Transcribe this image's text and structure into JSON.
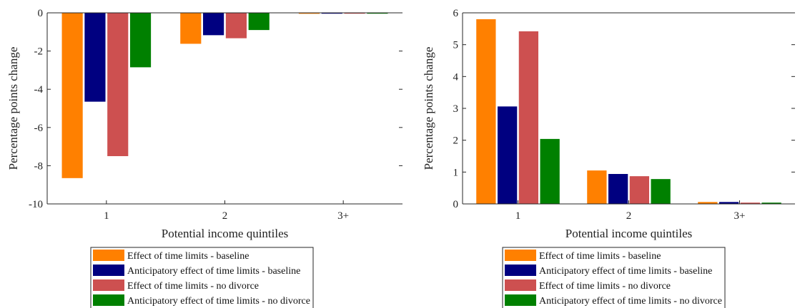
{
  "chart_data": [
    {
      "type": "bar",
      "categories": [
        "1",
        "2",
        "3+"
      ],
      "xlabel": "Potential income quintiles",
      "ylabel": "Percentage points change",
      "ylim": [
        -10,
        0
      ],
      "yticks": [
        0,
        -2,
        -4,
        -6,
        -8,
        -10
      ],
      "yticklabels": [
        "0",
        "-2",
        "-4",
        "-6",
        "-8",
        "-10"
      ],
      "series": [
        {
          "name": "Effect of time limits - baseline",
          "color": "#ff8000",
          "values": [
            -8.65,
            -1.62,
            -0.05
          ]
        },
        {
          "name": "Anticipatory effect of time limits - baseline",
          "color": "#000080",
          "values": [
            -4.65,
            -1.17,
            -0.04
          ]
        },
        {
          "name": "Effect of time limits - no  divorce",
          "color": "#cd5050",
          "values": [
            -7.5,
            -1.33,
            -0.04
          ]
        },
        {
          "name": "Anticipatory effect of time limits - no divorce",
          "color": "#008000",
          "values": [
            -2.85,
            -0.9,
            -0.03
          ]
        }
      ],
      "legend_position": "bottom"
    },
    {
      "type": "bar",
      "categories": [
        "1",
        "2",
        "3+"
      ],
      "xlabel": "Potential income quintiles",
      "ylabel": "Percentage points change",
      "ylim": [
        0,
        6
      ],
      "yticks": [
        0,
        1,
        2,
        3,
        4,
        5,
        6
      ],
      "yticklabels": [
        "0",
        "1",
        "2",
        "3",
        "4",
        "5",
        "6"
      ],
      "series": [
        {
          "name": "Effect of time limits - baseline",
          "color": "#ff8000",
          "values": [
            5.8,
            1.05,
            0.06
          ]
        },
        {
          "name": "Anticipatory effect of time limits - baseline",
          "color": "#000080",
          "values": [
            3.06,
            0.94,
            0.06
          ]
        },
        {
          "name": "Effect of time limits - no  divorce",
          "color": "#cd5050",
          "values": [
            5.42,
            0.87,
            0.04
          ]
        },
        {
          "name": "Anticipatory effect of time limits - no divorce",
          "color": "#008000",
          "values": [
            2.04,
            0.78,
            0.04
          ]
        }
      ],
      "legend_position": "bottom"
    }
  ]
}
